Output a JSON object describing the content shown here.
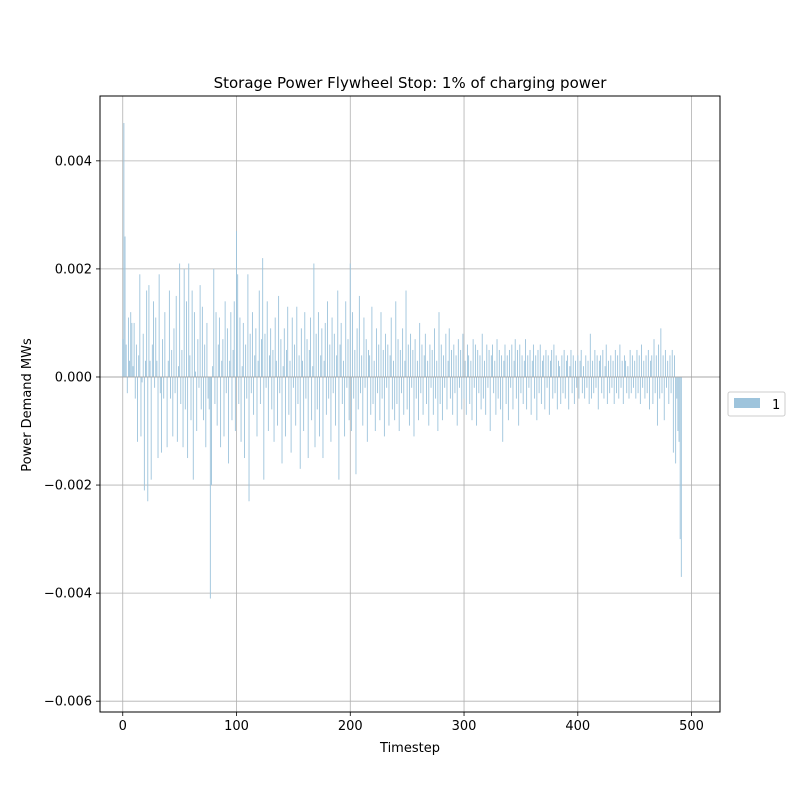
{
  "chart_data": {
    "type": "bar",
    "title": "Storage Power Flywheel Stop: 1% of charging power",
    "xlabel": "Timestep",
    "ylabel": "Power Demand MWs",
    "xlim": [
      -20,
      525
    ],
    "ylim": [
      -0.0062,
      0.0052
    ],
    "x_ticks": [
      0,
      100,
      200,
      300,
      400,
      500
    ],
    "x_tick_labels": [
      "0",
      "100",
      "200",
      "300",
      "400",
      "500"
    ],
    "y_ticks": [
      -0.006,
      -0.004,
      -0.002,
      0.0,
      0.002,
      0.004
    ],
    "y_tick_labels": [
      "−0.006",
      "−0.004",
      "−0.002",
      "0.000",
      "0.002",
      "0.004"
    ],
    "grid": true,
    "legend_placement": "right",
    "bar_color": "#9ec4dc",
    "series": [
      {
        "name": "1",
        "x_start": 0,
        "x_step": 1,
        "values": [
          0.0007,
          0.0047,
          0.0026,
          0.0006,
          -0.0003,
          0.0011,
          0.0003,
          0.0012,
          0.001,
          0.0002,
          0.001,
          -0.0004,
          0.0006,
          -0.0012,
          0.0004,
          0.0019,
          -0.0011,
          -0.0001,
          0.0008,
          -0.0021,
          0.0003,
          0.0016,
          -0.0023,
          0.0017,
          0.0003,
          -0.0019,
          0.0006,
          0.0014,
          -0.0002,
          0.0011,
          0.0003,
          -0.0015,
          0.0019,
          -0.0003,
          -0.0014,
          0.0007,
          -0.0004,
          0.0012,
          0.0,
          -0.0013,
          0.0003,
          0.0016,
          -0.0004,
          0.0005,
          -0.0011,
          0.0009,
          -0.0003,
          0.0015,
          -0.0012,
          0.0002,
          0.0021,
          -0.0005,
          0.0005,
          -0.0013,
          0.002,
          -0.0006,
          0.0014,
          -0.0015,
          0.0021,
          0.0004,
          -0.0008,
          0.0016,
          -0.0019,
          0.0012,
          0.0001,
          -0.001,
          0.0007,
          -0.0002,
          0.0017,
          -0.0006,
          0.0013,
          -0.0008,
          0.0006,
          -0.0013,
          0.001,
          -0.0004,
          -0.0006,
          -0.0041,
          -0.002,
          0.0002,
          0.002,
          -0.0005,
          0.0012,
          -0.0009,
          0.0006,
          0.0011,
          -0.0013,
          0.0003,
          0.0007,
          -0.0011,
          0.0014,
          -0.0003,
          0.0009,
          -0.0016,
          0.0003,
          0.0012,
          -0.0008,
          0.0005,
          0.0014,
          -0.001,
          0.0027,
          0.0019,
          -0.0005,
          0.0011,
          -0.0012,
          0.0002,
          0.001,
          -0.0015,
          0.0006,
          -0.0004,
          0.0019,
          -0.0023,
          0.0008,
          -0.0003,
          0.0012,
          -0.0007,
          0.0004,
          0.0009,
          -0.0011,
          0.0003,
          0.0016,
          -0.0005,
          0.0007,
          0.0022,
          -0.0019,
          0.0008,
          -0.0002,
          0.0014,
          -0.001,
          0.0004,
          0.0009,
          -0.0006,
          0.0005,
          -0.0012,
          0.0011,
          0.0003,
          -0.0009,
          0.0015,
          -0.0003,
          0.0007,
          -0.0016,
          0.0002,
          0.0009,
          -0.0011,
          0.0005,
          0.0013,
          -0.0007,
          0.0003,
          -0.0014,
          0.0011,
          -0.0002,
          0.0006,
          -0.0009,
          0.0013,
          -0.0005,
          0.0004,
          -0.0017,
          0.0009,
          0.0003,
          -0.001,
          0.0012,
          -0.0004,
          0.0007,
          -0.0015,
          0.0005,
          0.0011,
          -0.0008,
          0.0002,
          0.0021,
          -0.0013,
          0.0008,
          -0.0006,
          0.0012,
          -0.0011,
          0.0004,
          0.0009,
          -0.0015,
          0.0003,
          0.001,
          -0.0007,
          0.0014,
          -0.0004,
          0.0006,
          -0.0012,
          0.0011,
          -0.0003,
          0.0008,
          -0.0009,
          0.0004,
          0.0016,
          -0.0019,
          0.0006,
          0.001,
          -0.0005,
          0.0003,
          -0.0011,
          0.0014,
          -0.0002,
          0.0007,
          -0.0008,
          0.0021,
          -0.001,
          0.0012,
          -0.0004,
          0.0005,
          -0.0018,
          0.0009,
          -0.0006,
          0.0015,
          -0.0003,
          0.0004,
          -0.0009,
          0.0011,
          -0.0002,
          0.0007,
          -0.0012,
          0.0005,
          0.0004,
          -0.0007,
          0.0013,
          -0.0005,
          0.0003,
          -0.001,
          0.0009,
          -0.0003,
          0.0006,
          -0.0008,
          0.0012,
          -0.0004,
          0.0005,
          -0.0011,
          0.0008,
          -0.0002,
          0.0006,
          -0.0009,
          0.0004,
          0.0011,
          -0.0006,
          0.0003,
          -0.0008,
          0.0014,
          -0.0005,
          0.0007,
          -0.001,
          0.0005,
          -0.0003,
          0.0009,
          -0.0007,
          0.0003,
          0.0016,
          -0.0006,
          0.0006,
          -0.0009,
          0.0008,
          -0.0002,
          0.0005,
          -0.0011,
          0.0007,
          -0.0004,
          0.0003,
          -0.0008,
          0.001,
          -0.0003,
          0.0006,
          -0.0007,
          0.0004,
          0.0008,
          -0.0005,
          0.0003,
          -0.0009,
          0.0006,
          -0.0002,
          0.0005,
          -0.0007,
          0.0009,
          -0.0004,
          0.0003,
          -0.001,
          0.0012,
          -0.0005,
          0.0006,
          -0.0008,
          0.0004,
          -0.0002,
          0.0008,
          -0.0006,
          0.0003,
          0.0009,
          -0.0004,
          0.0005,
          -0.0007,
          0.0006,
          -0.0003,
          0.0004,
          -0.0009,
          0.0007,
          -0.0002,
          0.0005,
          -0.0006,
          0.0008,
          -0.0004,
          0.0003,
          -0.0007,
          0.0006,
          0.0004,
          -0.0005,
          0.0003,
          -0.0008,
          0.0007,
          -0.0002,
          0.0006,
          -0.0009,
          0.0005,
          -0.0003,
          0.0004,
          -0.0006,
          0.0008,
          -0.0004,
          0.0003,
          -0.0007,
          0.0006,
          -0.0002,
          0.0005,
          -0.001,
          0.0004,
          0.0006,
          -0.0003,
          0.0003,
          -0.0007,
          0.0007,
          -0.0004,
          0.0005,
          -0.0006,
          0.0004,
          -0.0012,
          0.0003,
          0.0006,
          -0.0005,
          0.0004,
          -0.0008,
          0.0005,
          -0.0002,
          0.0006,
          -0.0006,
          0.0003,
          0.0007,
          -0.0004,
          0.0005,
          -0.0009,
          0.0006,
          -0.0003,
          0.0004,
          -0.0005,
          0.0003,
          0.0007,
          -0.0006,
          0.0004,
          -0.0002,
          0.0005,
          -0.0007,
          0.0003,
          0.0006,
          -0.0004,
          0.0004,
          -0.0008,
          0.0005,
          -0.0003,
          0.0006,
          -0.0005,
          0.0003,
          0.0004,
          -0.0006,
          0.0005,
          -0.0002,
          0.0004,
          -0.0007,
          0.0003,
          0.0005,
          -0.0004,
          0.0006,
          -0.0003,
          0.0004,
          -0.0006,
          0.0003,
          0.0002,
          -0.0005,
          0.0004,
          -0.0003,
          0.0005,
          -0.0004,
          0.0003,
          0.0004,
          -0.0006,
          0.0002,
          0.0005,
          -0.0003,
          0.0004,
          -0.0005,
          0.0003,
          -0.0002,
          0.0004,
          -0.0004,
          0.0003,
          0.0005,
          -0.0003,
          0.0002,
          -0.0004,
          0.0004,
          -0.0002,
          0.0003,
          -0.0005,
          0.0008,
          -0.0004,
          0.0003,
          -0.0003,
          0.0005,
          -0.0002,
          0.0004,
          -0.0006,
          0.0003,
          0.0004,
          -0.0003,
          0.0005,
          -0.0004,
          0.0002,
          0.0006,
          -0.0005,
          0.0003,
          -0.0003,
          0.0004,
          -0.0002,
          0.0003,
          -0.0005,
          0.0005,
          -0.0003,
          0.0004,
          -0.0004,
          0.0006,
          -0.0002,
          0.0003,
          -0.0005,
          0.0004,
          0.0003,
          -0.0003,
          0.0002,
          -0.0004,
          0.0005,
          -0.0003,
          0.0004,
          -0.0002,
          0.0003,
          -0.0004,
          0.0005,
          -0.0003,
          0.0004,
          -0.0005,
          0.0006,
          -0.0002,
          0.0003,
          -0.0004,
          0.0004,
          -0.0003,
          0.0005,
          -0.0006,
          0.0003,
          0.0004,
          -0.0005,
          0.0007,
          -0.0003,
          0.0004,
          -0.0009,
          0.0006,
          -0.0004,
          0.0009,
          -0.0003,
          0.0004,
          -0.0008,
          0.0005,
          -0.0002,
          0.0003,
          -0.0005,
          0.0004,
          -0.0003,
          0.0005,
          -0.0014,
          0.0004,
          -0.0016,
          -0.0004,
          -0.001,
          -0.0012,
          -0.003,
          -0.0037
        ]
      }
    ]
  }
}
